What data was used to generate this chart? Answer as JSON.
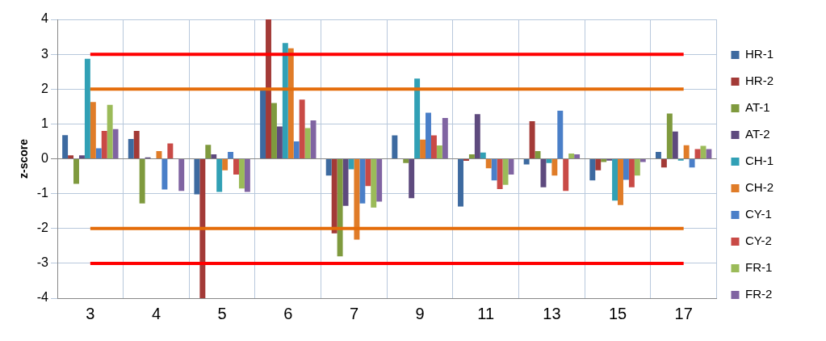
{
  "chart_data": {
    "type": "bar",
    "ylabel": "z-score",
    "categories": [
      "3",
      "4",
      "5",
      "6",
      "7",
      "9",
      "11",
      "13",
      "15",
      "17"
    ],
    "ylim": [
      -4,
      4
    ],
    "yticks": [
      -4,
      -3,
      -2,
      -1,
      0,
      1,
      2,
      3,
      4
    ],
    "grid": true,
    "legend": "right",
    "series": [
      {
        "name": "HR-1",
        "color": "#3d6aa0",
        "values": [
          0.68,
          0.57,
          -1.02,
          1.97,
          -0.48,
          0.67,
          -1.37,
          -0.16,
          -0.62,
          0.2
        ]
      },
      {
        "name": "HR-2",
        "color": "#a33a37",
        "values": [
          0.1,
          0.8,
          -4,
          4,
          -2.14,
          0,
          -0.06,
          1.08,
          -0.33,
          -0.25
        ]
      },
      {
        "name": "AT-1",
        "color": "#7f9a3e",
        "values": [
          -0.72,
          -1.28,
          0.4,
          1.6,
          -2.8,
          -0.12,
          0.13,
          0.22,
          -0.09,
          1.3
        ]
      },
      {
        "name": "AT-2",
        "color": "#5e4a7e",
        "values": [
          0.1,
          0.04,
          0.13,
          0.93,
          -1.35,
          -1.13,
          1.28,
          -0.82,
          -0.05,
          0.78
        ]
      },
      {
        "name": "CH-1",
        "color": "#31a0b5",
        "values": [
          2.87,
          null,
          -0.95,
          3.32,
          -0.3,
          2.3,
          0.18,
          -0.12,
          -1.2,
          -0.05
        ]
      },
      {
        "name": "CH-2",
        "color": "#e07c28",
        "values": [
          1.63,
          0.22,
          -0.33,
          3.17,
          -2.32,
          0.55,
          -0.27,
          -0.48,
          -1.33,
          0.39
        ]
      },
      {
        "name": "CY-1",
        "color": "#4a7fc8",
        "values": [
          0.3,
          -0.88,
          0.2,
          0.5,
          -1.28,
          1.32,
          -0.62,
          1.38,
          -0.6,
          -0.25
        ]
      },
      {
        "name": "CY-2",
        "color": "#c94a46",
        "values": [
          0.8,
          0.44,
          -0.45,
          1.7,
          -0.78,
          0.67,
          -0.87,
          -0.92,
          -0.82,
          0.28
        ]
      },
      {
        "name": "FR-1",
        "color": "#9bbb59",
        "values": [
          1.55,
          null,
          -0.85,
          0.88,
          -1.4,
          0.38,
          -0.75,
          0.15,
          -0.48,
          0.37
        ]
      },
      {
        "name": "FR-2",
        "color": "#8064a2",
        "values": [
          0.85,
          -0.92,
          -0.95,
          1.1,
          -1.23,
          1.17,
          -0.45,
          0.13,
          -0.09,
          0.28
        ]
      }
    ],
    "ref_lines": [
      {
        "axis": "y",
        "value": 3,
        "color": "#ff0000"
      },
      {
        "axis": "y",
        "value": 2,
        "color": "#e46c0a"
      },
      {
        "axis": "y",
        "value": -2,
        "color": "#e46c0a"
      },
      {
        "axis": "y",
        "value": -3,
        "color": "#ff0000"
      }
    ]
  }
}
